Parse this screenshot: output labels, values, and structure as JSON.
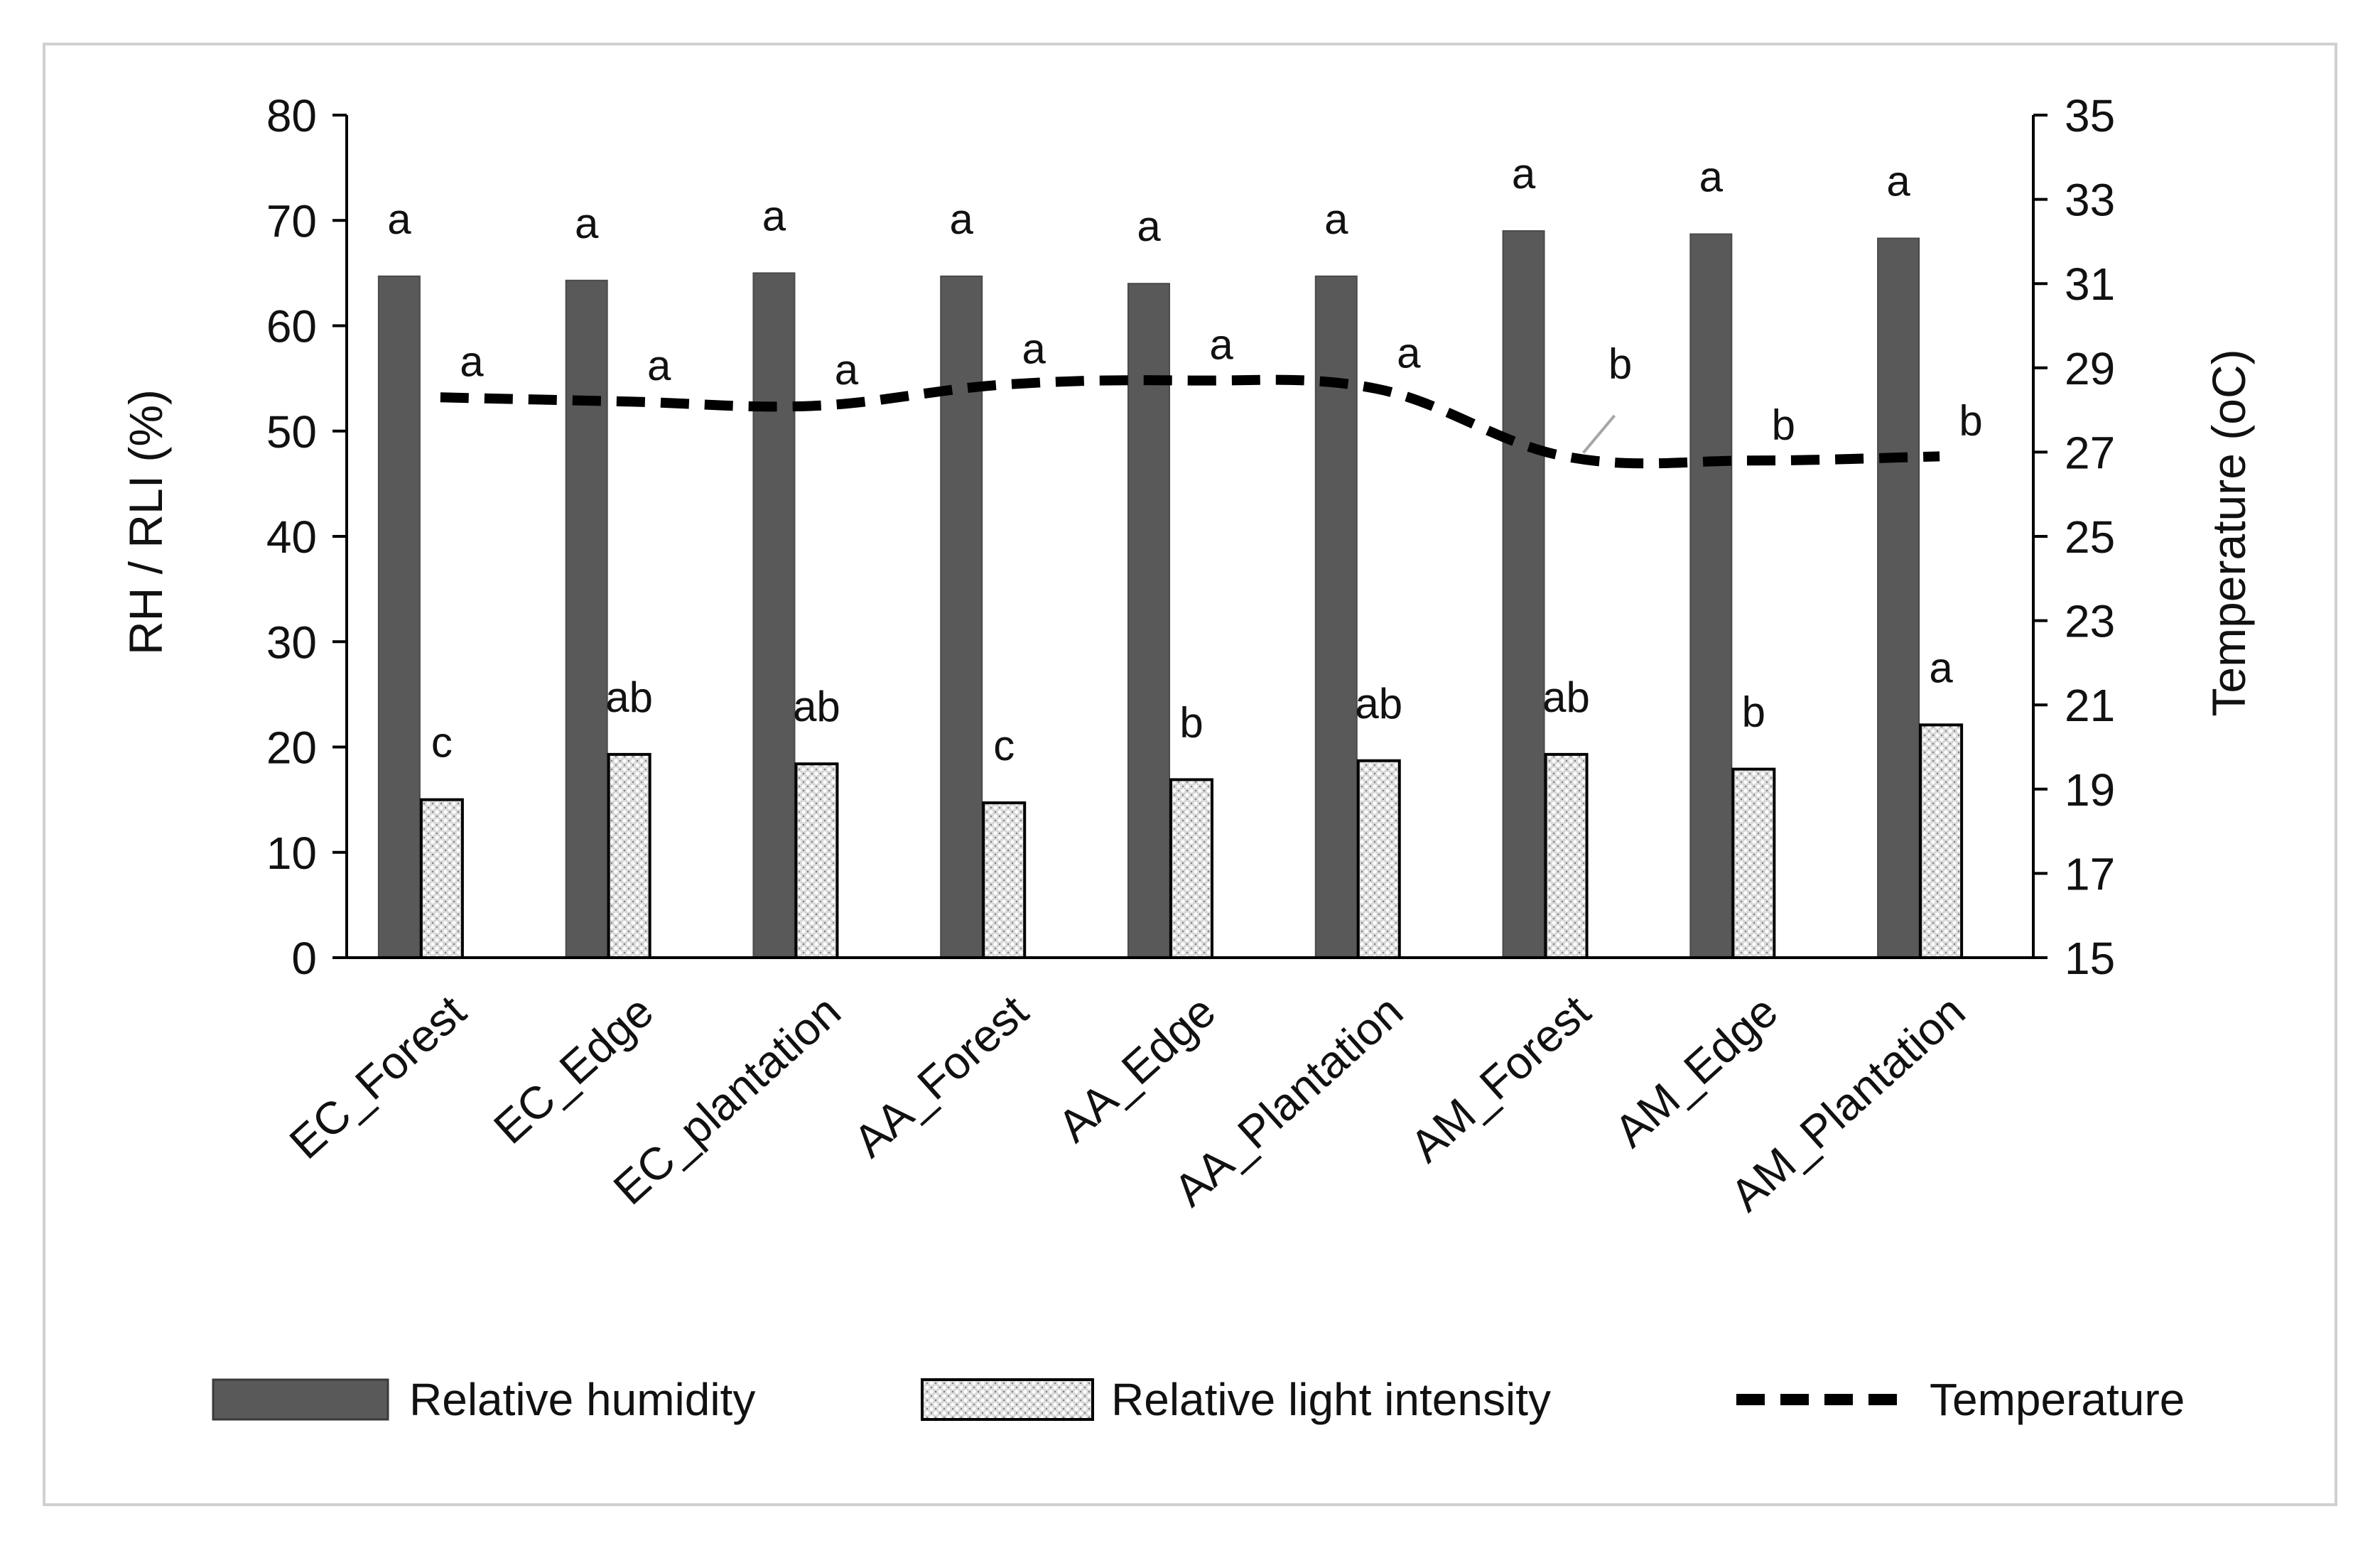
{
  "chart_data": {
    "type": "bar",
    "categories": [
      "EC_Forest",
      "EC_Edge",
      "EC_plantation",
      "AA_Forest",
      "AA_Edge",
      "AA_Plantation",
      "AM_Forest",
      "AM_Edge",
      "AM_Plantation"
    ],
    "series": [
      {
        "name": "Relative humidity",
        "axis": "left",
        "values": [
          64.7,
          64.3,
          65.0,
          64.7,
          64.0,
          64.7,
          69.0,
          68.7,
          68.3
        ],
        "letters": [
          "a",
          "a",
          "a",
          "a",
          "a",
          "a",
          "a",
          "a",
          "a"
        ],
        "color": "#595959"
      },
      {
        "name": "Relative light intensity",
        "axis": "left",
        "values": [
          15.0,
          19.3,
          18.4,
          14.7,
          16.9,
          18.7,
          19.3,
          17.9,
          22.1
        ],
        "letters": [
          "c",
          "ab",
          "ab",
          "c",
          "b",
          "ab",
          "ab",
          "b",
          "a"
        ],
        "color": "#bfbfbf"
      },
      {
        "name": "Temperature",
        "axis": "right",
        "type": "line",
        "values": [
          28.3,
          28.2,
          28.1,
          28.6,
          28.7,
          28.5,
          26.9,
          26.8,
          26.9
        ],
        "letters": [
          "a",
          "a",
          "a",
          "a",
          "a",
          "a",
          "b",
          "b",
          "b"
        ],
        "color": "#000000"
      }
    ],
    "ylabel": "RH / RLI (%)",
    "ylim": [
      0,
      80
    ],
    "yticks": [
      0,
      10,
      20,
      30,
      40,
      50,
      60,
      70,
      80
    ],
    "y2label": "Temperature (oC)",
    "y2lim": [
      15,
      35
    ],
    "y2ticks": [
      15,
      17,
      19,
      21,
      23,
      25,
      27,
      29,
      31,
      33,
      35
    ],
    "legend_position": "bottom"
  }
}
